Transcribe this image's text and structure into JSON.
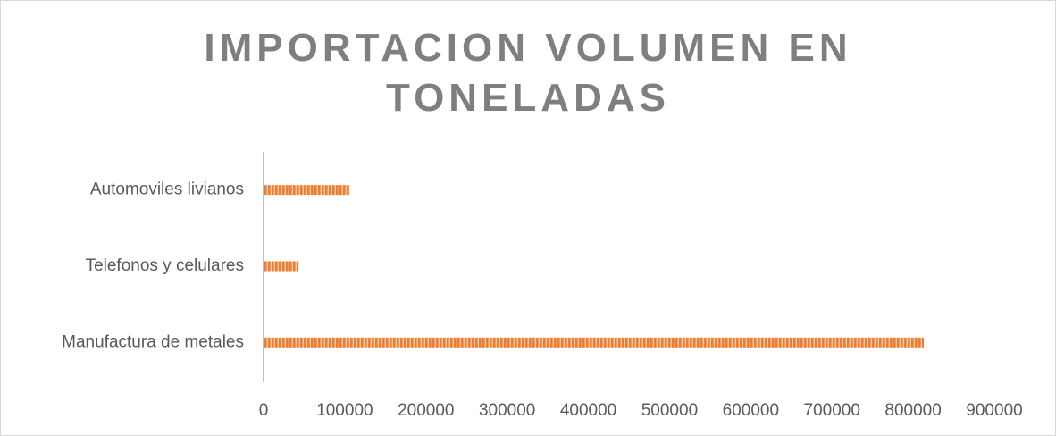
{
  "chart_data": {
    "type": "bar",
    "orientation": "horizontal",
    "title": "IMPORTACION VOLUMEN EN TONELADAS",
    "categories": [
      "Manufactura de metales",
      "Telefonos y celulares",
      "Automoviles livianos"
    ],
    "values": [
      812000,
      42000,
      105000
    ],
    "color": "#ed7d31",
    "xlim": [
      0,
      900000
    ],
    "xticks": [
      0,
      100000,
      200000,
      300000,
      400000,
      500000,
      600000,
      700000,
      800000,
      900000
    ],
    "grid": false
  }
}
